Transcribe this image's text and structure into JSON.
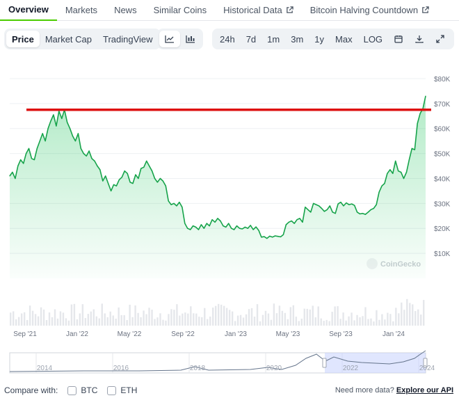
{
  "tabs": [
    {
      "label": "Overview",
      "active": true
    },
    {
      "label": "Markets"
    },
    {
      "label": "News"
    },
    {
      "label": "Similar Coins"
    },
    {
      "label": "Historical Data",
      "external": true
    },
    {
      "label": "Bitcoin Halving Countdown",
      "external": true
    }
  ],
  "toolbar": {
    "type_buttons": [
      "Price",
      "Market Cap",
      "TradingView"
    ],
    "range_buttons": [
      "24h",
      "7d",
      "1m",
      "3m",
      "1y",
      "Max",
      "LOG"
    ],
    "icons": [
      "line-chart-icon",
      "candlestick-icon",
      "calendar-icon",
      "download-icon",
      "expand-icon"
    ]
  },
  "chart_data": {
    "type": "area",
    "y_ticks": [
      "$80K",
      "$70K",
      "$60K",
      "$50K",
      "$40K",
      "$30K",
      "$20K",
      "$10K"
    ],
    "x_ticks": [
      "Sep '21",
      "Jan '22",
      "May '22",
      "Sep '22",
      "Jan '23",
      "May '23",
      "Sep '23",
      "Jan '24"
    ],
    "ylim": [
      0,
      85000
    ],
    "reference_line": {
      "value": 67500,
      "color": "#dd1111"
    },
    "line_color": "#16a34a",
    "watermark": "CoinGecko",
    "series": [
      {
        "values": [
          41000,
          42500,
          40000,
          45000,
          47500,
          46000,
          50000,
          52000,
          48000,
          47500,
          52000,
          55000,
          58000,
          55000,
          60000,
          63000,
          65500,
          61000,
          67000,
          64000,
          67500,
          62500,
          60000,
          57000,
          55000,
          58000,
          52000,
          50000,
          49000,
          51000,
          48000,
          47000,
          45000,
          43500,
          39000,
          41000,
          38000,
          35000,
          37500,
          37000,
          39500,
          40500,
          43000,
          42000,
          38500,
          38000,
          41500,
          40000,
          44000,
          44500,
          47000,
          45000,
          43000,
          40000,
          38500,
          40000,
          39000,
          37000,
          31000,
          29500,
          30000,
          29000,
          30500,
          28500,
          22000,
          20000,
          19500,
          21000,
          20500,
          19500,
          21500,
          20000,
          22000,
          21000,
          23500,
          22500,
          24000,
          23000,
          21000,
          20500,
          22000,
          20000,
          19500,
          21000,
          20000,
          19800,
          20500,
          20000,
          21200,
          19500,
          20600,
          19200,
          16500,
          16700,
          16000,
          16900,
          16500,
          17000,
          16800,
          16600,
          17500,
          21500,
          22500,
          23000,
          22000,
          23500,
          24000,
          22500,
          28500,
          27500,
          26500,
          30000,
          29500,
          29000,
          28000,
          26800,
          27500,
          29000,
          26500,
          26000,
          29800,
          30500,
          29000,
          30200,
          29500,
          29800,
          29200,
          26500,
          25800,
          26000,
          25600,
          26500,
          27500,
          28000,
          29500,
          34500,
          37000,
          38000,
          42000,
          43500,
          42000,
          47000,
          43000,
          42500,
          40000,
          42500,
          47500,
          52000,
          51500,
          62000,
          66000,
          68000,
          73000
        ]
      }
    ],
    "range_selector": {
      "years": [
        "2014",
        "2016",
        "2018",
        "2020",
        "2022",
        "2024"
      ],
      "selection": "Sep '21 - Mar '24"
    }
  },
  "footer": {
    "compare_label": "Compare with:",
    "compare_options": [
      "BTC",
      "ETH"
    ],
    "need_text": "Need more data?",
    "api_link": "Explore our API"
  }
}
